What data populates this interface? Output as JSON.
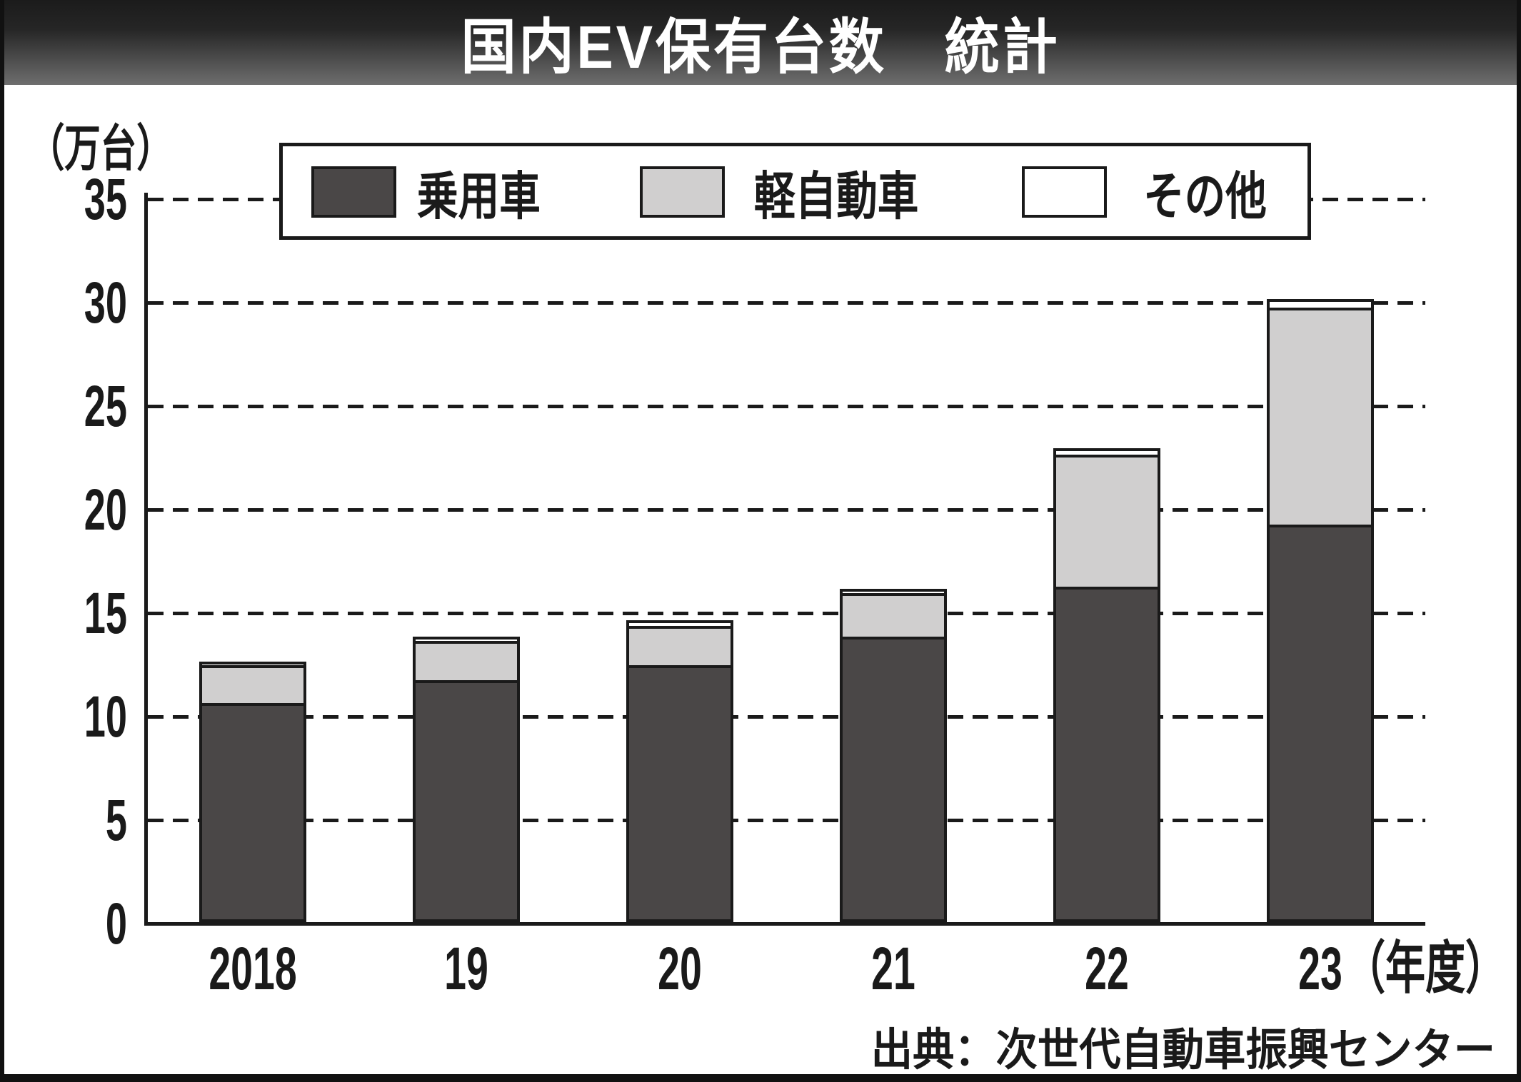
{
  "title": "国内EV保有台数　統計",
  "y_axis_unit": "（万台）",
  "x_axis_suffix": "（年度）",
  "source": "出典：次世代自動車振興センター",
  "colors": {
    "passenger": "#4a4747",
    "kei": "#d0cfcf",
    "other": "#ffffff",
    "line": "#1a1a1a",
    "title_band_top": "#1b1b1b",
    "title_band_bottom": "#6e6e6e"
  },
  "legend": {
    "items": [
      {
        "label": "乗用車"
      },
      {
        "label": "軽自動車"
      },
      {
        "label": "その他"
      }
    ]
  },
  "chart_data": {
    "type": "bar",
    "stacked": true,
    "title": "国内EV保有台数　統計",
    "ylabel": "（万台）",
    "xlabel": "（年度）",
    "categories": [
      "2018",
      "19",
      "20",
      "21",
      "22",
      "23"
    ],
    "series": [
      {
        "name": "乗用車",
        "color": "#4a4747",
        "values": [
          10.6,
          11.7,
          12.4,
          13.8,
          16.2,
          19.2
        ]
      },
      {
        "name": "軽自動車",
        "color": "#d0cfcf",
        "values": [
          1.8,
          1.9,
          1.9,
          2.1,
          6.4,
          10.5
        ]
      },
      {
        "name": "その他",
        "color": "#ffffff",
        "values": [
          0.2,
          0.2,
          0.3,
          0.2,
          0.3,
          0.4
        ]
      }
    ],
    "totals": [
      12.6,
      13.8,
      14.6,
      16.1,
      22.9,
      30.1
    ],
    "ylim": [
      0,
      35
    ],
    "yticks": [
      0,
      5,
      10,
      15,
      20,
      25,
      30,
      35
    ],
    "grid": "horizontal-dashed",
    "legend_position": "top"
  }
}
